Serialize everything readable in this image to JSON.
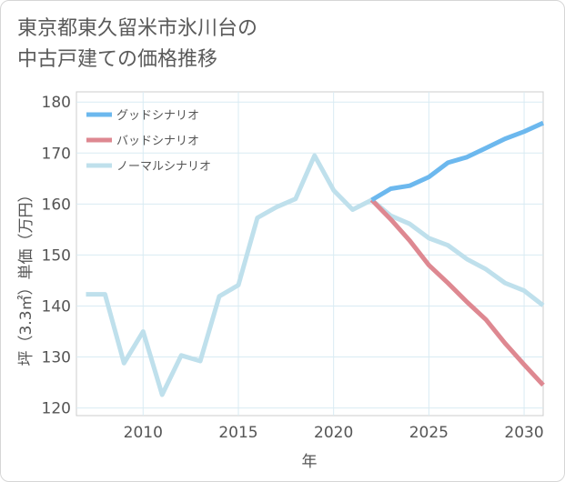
{
  "title": {
    "line1": "東京都東久留米市氷川台の",
    "line2": "中古戸建ての価格推移"
  },
  "chart_data": {
    "type": "line",
    "title": "東京都東久留米市氷川台の中古戸建ての価格推移",
    "xlabel": "年",
    "ylabel": "坪（3.3㎡）単価（万円）",
    "xlim": [
      2006.5,
      2031
    ],
    "ylim": [
      118.5,
      182
    ],
    "xticks": [
      2010,
      2015,
      2020,
      2025,
      2030
    ],
    "yticks": [
      120,
      130,
      140,
      150,
      160,
      170,
      180
    ],
    "grid": true,
    "legend_position": "top-left",
    "series": [
      {
        "name": "グッドシナリオ",
        "color": "#6cb8ee",
        "x": [
          2022,
          2023,
          2024,
          2025,
          2026,
          2027,
          2028,
          2029,
          2030,
          2031
        ],
        "values": [
          160.8,
          163.0,
          163.6,
          165.3,
          168.1,
          169.2,
          171.0,
          172.8,
          174.2,
          175.9
        ]
      },
      {
        "name": "バッドシナリオ",
        "color": "#de8891",
        "x": [
          2022,
          2023,
          2024,
          2025,
          2026,
          2027,
          2028,
          2029,
          2030,
          2031
        ],
        "values": [
          160.8,
          157.0,
          152.8,
          148.0,
          144.5,
          140.8,
          137.3,
          132.7,
          128.5,
          124.5
        ]
      },
      {
        "name": "ノーマルシナリオ",
        "color": "#bfe0ec",
        "x": [
          2007,
          2008,
          2009,
          2010,
          2011,
          2012,
          2013,
          2014,
          2015,
          2016,
          2017,
          2018,
          2019,
          2020,
          2021,
          2022,
          2023,
          2024,
          2025,
          2026,
          2027,
          2028,
          2029,
          2030,
          2031
        ],
        "values": [
          142.3,
          142.3,
          128.8,
          135.0,
          122.6,
          130.3,
          129.2,
          141.9,
          144.1,
          157.3,
          159.4,
          161.0,
          169.5,
          162.7,
          158.9,
          160.8,
          157.7,
          156.1,
          153.3,
          151.9,
          149.2,
          147.2,
          144.5,
          143.0,
          140.1
        ]
      }
    ]
  }
}
